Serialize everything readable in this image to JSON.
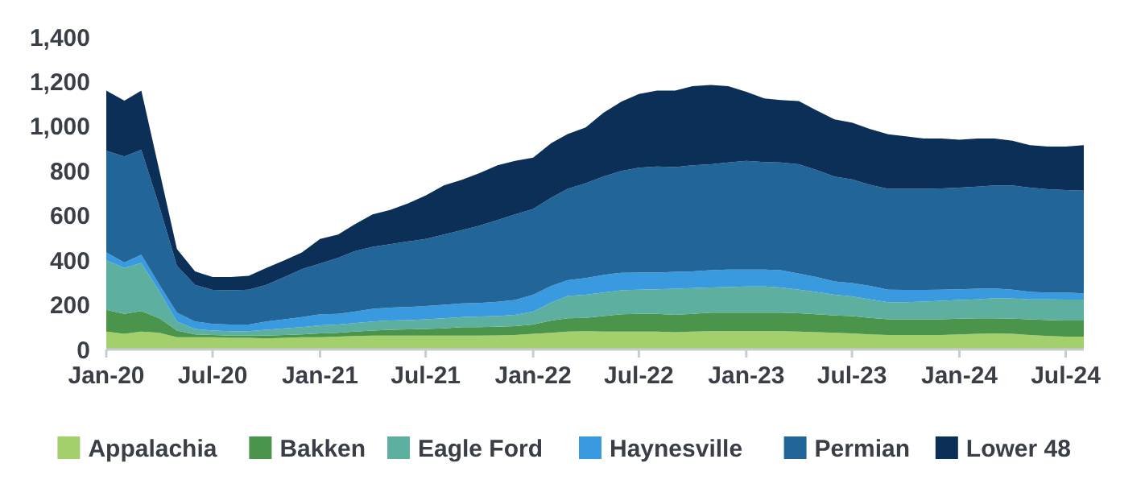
{
  "chart_data": {
    "type": "area",
    "stacked": true,
    "x": [
      "2020-01",
      "2020-02",
      "2020-03",
      "2020-04",
      "2020-05",
      "2020-06",
      "2020-07",
      "2020-08",
      "2020-09",
      "2020-10",
      "2020-11",
      "2020-12",
      "2021-01",
      "2021-02",
      "2021-03",
      "2021-04",
      "2021-05",
      "2021-06",
      "2021-07",
      "2021-08",
      "2021-09",
      "2021-10",
      "2021-11",
      "2021-12",
      "2022-01",
      "2022-02",
      "2022-03",
      "2022-04",
      "2022-05",
      "2022-06",
      "2022-07",
      "2022-08",
      "2022-09",
      "2022-10",
      "2022-11",
      "2022-12",
      "2023-01",
      "2023-02",
      "2023-03",
      "2023-04",
      "2023-05",
      "2023-06",
      "2023-07",
      "2023-08",
      "2023-09",
      "2023-10",
      "2023-11",
      "2023-12",
      "2024-01",
      "2024-02",
      "2024-03",
      "2024-04",
      "2024-05",
      "2024-06",
      "2024-07",
      "2024-08"
    ],
    "series": [
      {
        "name": "Appalachia",
        "color": "#a3d06c",
        "values": [
          80,
          70,
          80,
          75,
          55,
          55,
          55,
          52,
          52,
          50,
          52,
          55,
          55,
          58,
          60,
          62,
          62,
          62,
          62,
          62,
          62,
          62,
          63,
          65,
          70,
          75,
          80,
          82,
          80,
          80,
          80,
          80,
          78,
          80,
          82,
          82,
          82,
          82,
          82,
          80,
          78,
          75,
          72,
          68,
          65,
          65,
          65,
          65,
          68,
          70,
          72,
          70,
          65,
          60,
          58,
          58
        ]
      },
      {
        "name": "Bakken",
        "color": "#4a944c",
        "values": [
          98,
          90,
          92,
          65,
          30,
          13,
          10,
          10,
          10,
          12,
          13,
          13,
          17,
          17,
          20,
          23,
          26,
          28,
          30,
          33,
          38,
          38,
          39,
          40,
          42,
          55,
          60,
          60,
          70,
          78,
          80,
          80,
          77,
          80,
          83,
          83,
          83,
          83,
          83,
          82,
          80,
          77,
          78,
          74,
          70,
          70,
          70,
          70,
          70,
          70,
          68,
          68,
          70,
          72,
          72,
          72
        ]
      },
      {
        "name": "Eagle Ford",
        "color": "#5db09f",
        "values": [
          222,
          205,
          216,
          120,
          40,
          24,
          20,
          20,
          20,
          26,
          30,
          32,
          36,
          37,
          38,
          40,
          42,
          42,
          43,
          45,
          45,
          48,
          48,
          50,
          58,
          80,
          100,
          103,
          105,
          107,
          108,
          110,
          117,
          115,
          113,
          115,
          117,
          117,
          113,
          106,
          100,
          93,
          88,
          83,
          77,
          77,
          80,
          83,
          84,
          85,
          90,
          90,
          90,
          93,
          94,
          94
        ]
      },
      {
        "name": "Haynesville",
        "color": "#3a9ae0",
        "values": [
          35,
          25,
          37,
          30,
          40,
          33,
          30,
          30,
          30,
          37,
          40,
          45,
          50,
          48,
          52,
          57,
          58,
          58,
          60,
          60,
          62,
          60,
          64,
          67,
          75,
          75,
          70,
          75,
          79,
          79,
          77,
          75,
          76,
          75,
          77,
          78,
          76,
          76,
          77,
          72,
          67,
          60,
          60,
          60,
          56,
          55,
          52,
          50,
          48,
          47,
          43,
          40,
          33,
          30,
          31,
          28
        ]
      },
      {
        "name": "Permian",
        "color": "#226699",
        "values": [
          455,
          475,
          470,
          350,
          210,
          165,
          152,
          153,
          156,
          165,
          190,
          215,
          227,
          250,
          270,
          278,
          284,
          294,
          300,
          315,
          328,
          347,
          366,
          383,
          385,
          395,
          410,
          425,
          441,
          456,
          470,
          475,
          469,
          475,
          475,
          480,
          487,
          482,
          483,
          490,
          480,
          470,
          464,
          453,
          452,
          453,
          453,
          454,
          455,
          458,
          462,
          467,
          467,
          463,
          459,
          460
        ]
      },
      {
        "name": "Lower 48",
        "color": "#0c2f57",
        "values": [
          270,
          250,
          265,
          160,
          75,
          60,
          58,
          60,
          62,
          75,
          75,
          75,
          110,
          105,
          120,
          145,
          153,
          171,
          195,
          220,
          225,
          235,
          245,
          240,
          230,
          245,
          245,
          250,
          285,
          310,
          330,
          340,
          343,
          355,
          355,
          342,
          310,
          285,
          280,
          283,
          267,
          256,
          255,
          250,
          244,
          235,
          225,
          223,
          215,
          215,
          210,
          200,
          191,
          191,
          195,
          204
        ]
      }
    ],
    "xlim": [
      "2020-01",
      "2024-08"
    ],
    "xticks": [
      {
        "value": "2020-01",
        "label": "Jan-20"
      },
      {
        "value": "2020-07",
        "label": "Jul-20"
      },
      {
        "value": "2021-01",
        "label": "Jan-21"
      },
      {
        "value": "2021-07",
        "label": "Jul-21"
      },
      {
        "value": "2022-01",
        "label": "Jan-22"
      },
      {
        "value": "2022-07",
        "label": "Jul-22"
      },
      {
        "value": "2023-01",
        "label": "Jan-23"
      },
      {
        "value": "2023-07",
        "label": "Jul-23"
      },
      {
        "value": "2024-01",
        "label": "Jan-24"
      },
      {
        "value": "2024-07",
        "label": "Jul-24"
      }
    ],
    "ylim": [
      0,
      1400
    ],
    "yticks": [
      0,
      200,
      400,
      600,
      800,
      {
        "value": 1000,
        "label": "1,000"
      },
      {
        "value": 1200,
        "label": "1,200"
      },
      {
        "value": 1400,
        "label": "1,400"
      }
    ],
    "grid": false,
    "legend": "bottom"
  }
}
